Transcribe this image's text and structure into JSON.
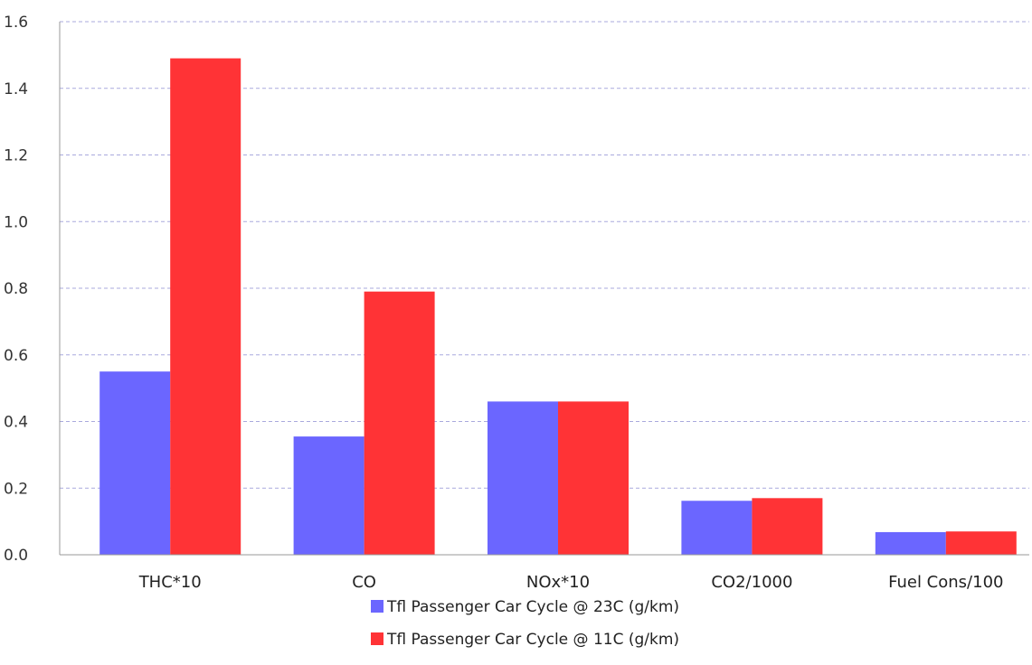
{
  "chart_data": {
    "type": "bar",
    "title": "",
    "xlabel": "",
    "ylabel": "",
    "categories": [
      "THC*10",
      "CO",
      "NOx*10",
      "CO2/1000",
      "Fuel Cons/100"
    ],
    "series": [
      {
        "name": "Tfl Passenger Car Cycle @ 23C (g/km)",
        "color": "#6b66ff",
        "values": [
          0.55,
          0.355,
          0.46,
          0.162,
          0.068
        ]
      },
      {
        "name": "Tfl Passenger Car Cycle @ 11C (g/km)",
        "color": "#ff3336",
        "values": [
          1.49,
          0.79,
          0.46,
          0.17,
          0.07
        ]
      }
    ],
    "ylim": [
      0,
      1.6
    ],
    "yticks": [
      "0.0",
      "0.2",
      "0.4",
      "0.6",
      "0.8",
      "1.0",
      "1.2",
      "1.4",
      "1.6"
    ],
    "grid": true,
    "legend_position": "bottom"
  }
}
